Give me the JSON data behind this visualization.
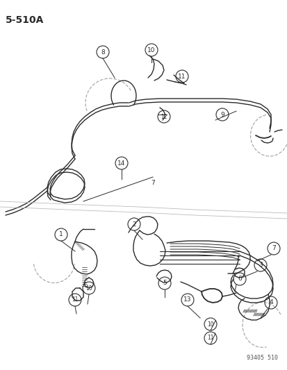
{
  "title": "5-510A",
  "watermark": "93405 510",
  "bg_color": "#ffffff",
  "line_color": "#2a2a2a",
  "fig_width": 4.14,
  "fig_height": 5.33,
  "dpi": 100
}
